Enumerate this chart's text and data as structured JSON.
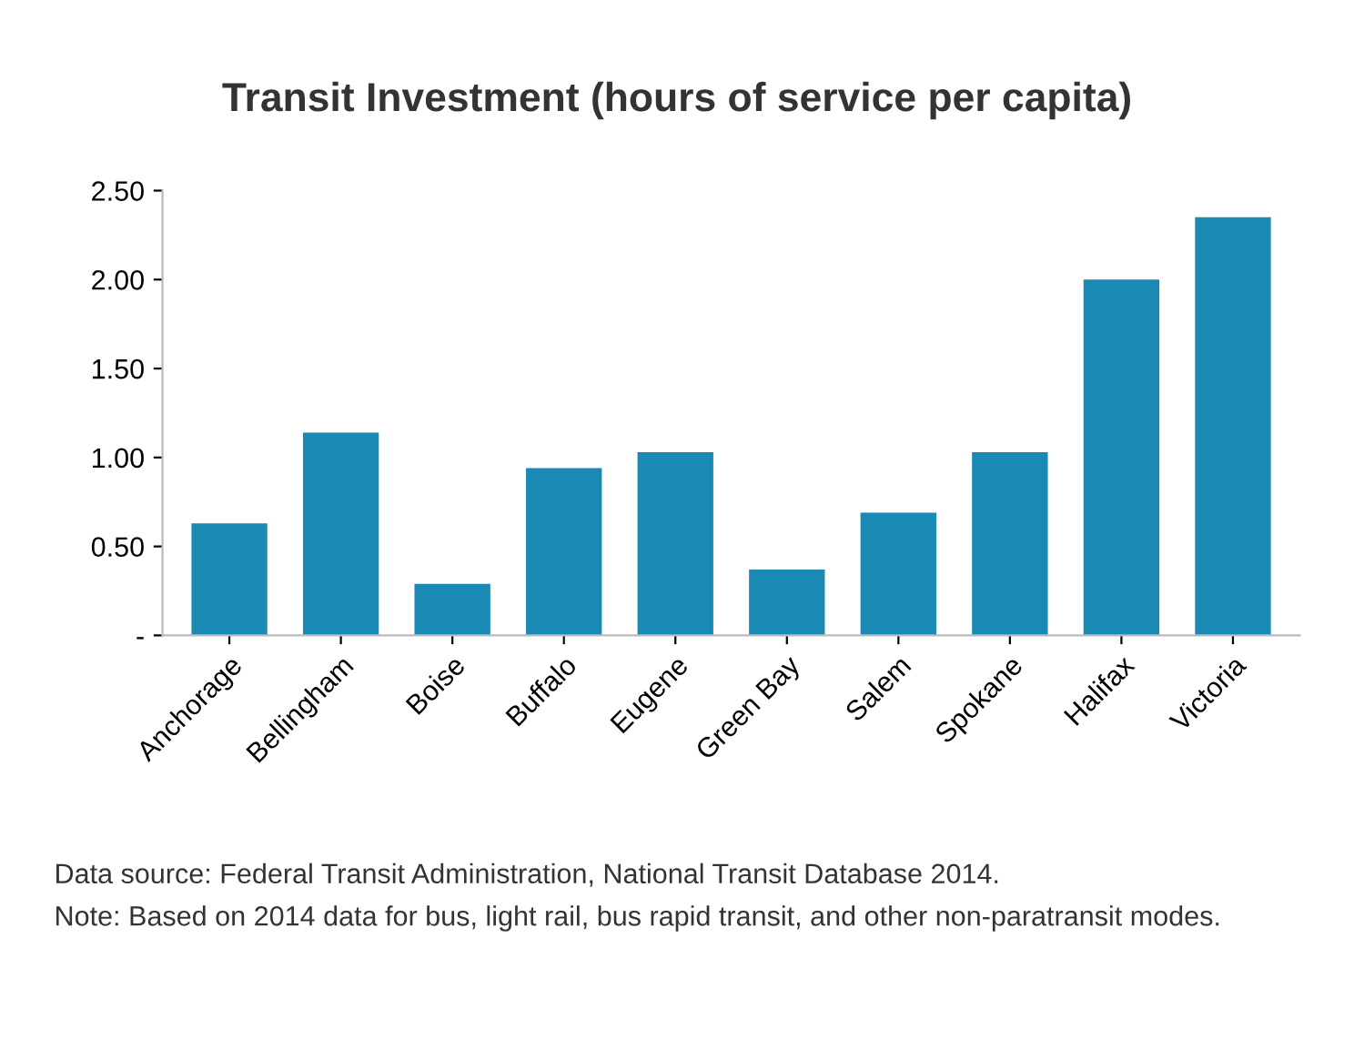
{
  "chart_data": {
    "type": "bar",
    "title": "Transit Investment (hours of service per capita)",
    "categories": [
      "Anchorage",
      "Bellingham",
      "Boise",
      "Buffalo",
      "Eugene",
      "Green Bay",
      "Salem",
      "Spokane",
      "Halifax",
      "Victoria"
    ],
    "values": [
      0.63,
      1.14,
      0.29,
      0.94,
      1.03,
      0.37,
      0.69,
      1.03,
      2.0,
      2.35
    ],
    "color": "#1a8ab4",
    "ylim": [
      0,
      2.5
    ],
    "yticks": [
      {
        "value": 0,
        "label": "-"
      },
      {
        "value": 0.5,
        "label": "0.50"
      },
      {
        "value": 1,
        "label": "1.00"
      },
      {
        "value": 1.5,
        "label": "1.50"
      },
      {
        "value": 2,
        "label": "2.00"
      },
      {
        "value": 2.5,
        "label": "2.50"
      }
    ],
    "grid": false,
    "annotations": [
      "Data source: Federal Transit Administration, National Transit Database 2014.",
      "Note: Based on 2014 data for bus, light rail, bus rapid transit, and other non-paratransit modes."
    ]
  }
}
